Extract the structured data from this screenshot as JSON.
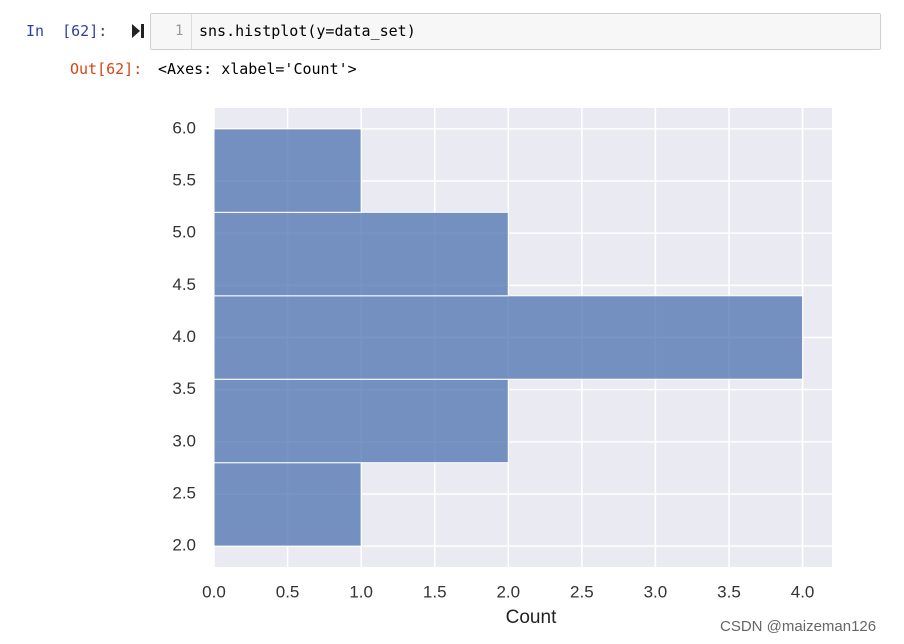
{
  "cell": {
    "prompt_in": "In  [62]:",
    "line_number": "1",
    "code": "sns.histplot(y=data_set)",
    "prompt_out": "Out[62]:",
    "output_text": "<Axes: xlabel='Count'>"
  },
  "chart_data": {
    "type": "histogram",
    "orientation": "horizontal",
    "xlabel": "Count",
    "bins": [
      2.0,
      2.8,
      3.6,
      4.4,
      5.2,
      6.0
    ],
    "values": [
      1,
      2,
      4,
      2,
      1
    ],
    "color": "#4c72b0",
    "xlim": [
      0,
      4.2
    ],
    "ylim": [
      1.8,
      6.2
    ],
    "xticks": [
      {
        "value": 0,
        "label": "0.0"
      },
      0.5,
      {
        "value": 1,
        "label": "1.0"
      },
      1.5,
      {
        "value": 2,
        "label": "2.0"
      },
      2.5,
      {
        "value": 3,
        "label": "3.0"
      },
      3.5,
      {
        "value": 4,
        "label": "4.0"
      }
    ],
    "yticks": [
      {
        "value": 2,
        "label": "2.0"
      },
      2.5,
      {
        "value": 3,
        "label": "3.0"
      },
      3.5,
      {
        "value": 4,
        "label": "4.0"
      },
      4.5,
      {
        "value": 5,
        "label": "5.0"
      },
      5.5,
      {
        "value": 6,
        "label": "6.0"
      }
    ],
    "grid": true
  },
  "watermark": "CSDN @maizeman126"
}
